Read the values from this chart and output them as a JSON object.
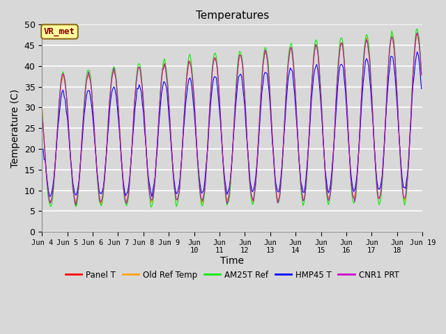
{
  "title": "Temperatures",
  "xlabel": "Time",
  "ylabel": "Temperature (C)",
  "ylim": [
    0,
    50
  ],
  "annotation_text": "VR_met",
  "annotation_color": "#8B0000",
  "annotation_bg": "#FFFFA0",
  "annotation_border": "#8B6914",
  "plot_bg": "#D8D8D8",
  "grid_color": "#FFFFFF",
  "series": [
    {
      "label": "Panel T",
      "color": "#FF0000"
    },
    {
      "label": "Old Ref Temp",
      "color": "#FFA500"
    },
    {
      "label": "AM25T Ref",
      "color": "#00EE00"
    },
    {
      "label": "HMP45 T",
      "color": "#0000FF"
    },
    {
      "label": "CNR1 PRT",
      "color": "#CC00CC"
    }
  ],
  "tick_labels": [
    "Jun 4",
    "Jun 5",
    "Jun 6",
    "Jun 7",
    "Jun 8",
    "Jun 9",
    "Jun\n10",
    "Jun\n11",
    "Jun\n12",
    "Jun\n13",
    "Jun\n14",
    "Jun\n15",
    "Jun\n16",
    "Jun\n17",
    "Jun\n18",
    "Jun 19"
  ],
  "n_days": 15,
  "pts_per_day": 24
}
